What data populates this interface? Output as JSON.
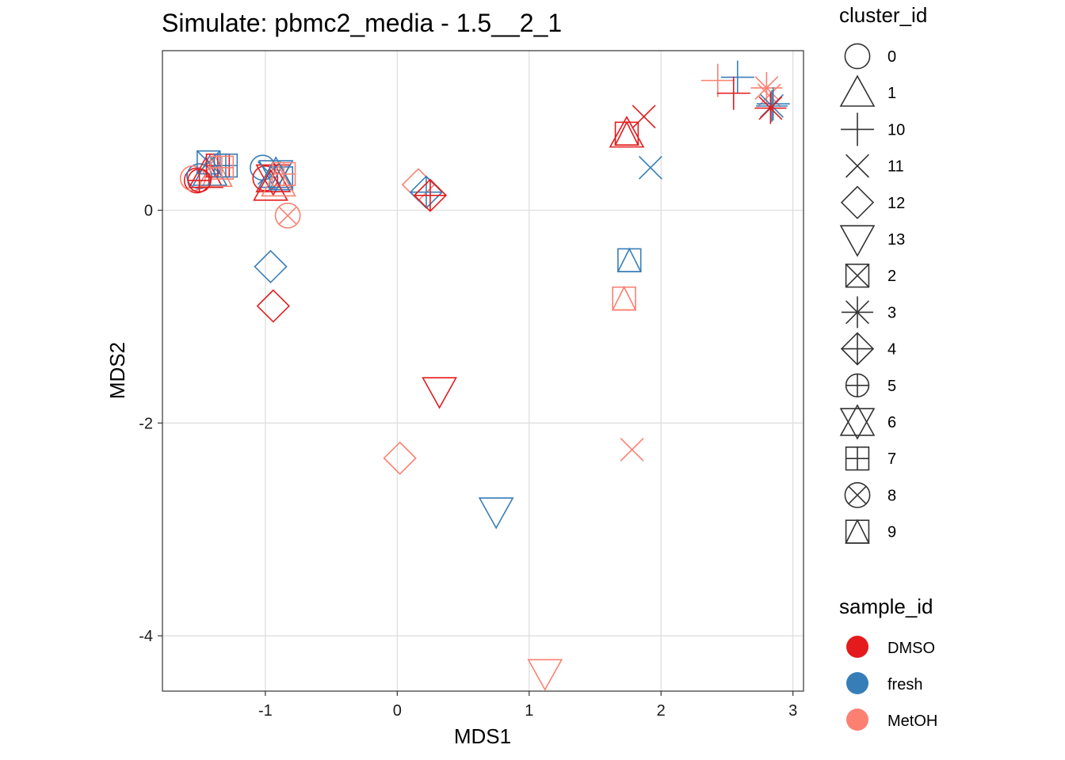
{
  "chart_data": {
    "type": "scatter",
    "title": "Simulate: pbmc2_media - 1.5__2_1",
    "xlabel": "MDS1",
    "ylabel": "MDS2",
    "xlim": [
      -1.78,
      3.08
    ],
    "ylim": [
      -4.52,
      1.5
    ],
    "xticks": [
      -1,
      0,
      1,
      2,
      3
    ],
    "xtick_labels": [
      "-1",
      "0",
      "1",
      "2",
      "3"
    ],
    "yticks": [
      0,
      -2,
      -4
    ],
    "ytick_labels": [
      "0",
      "-2",
      "-4"
    ],
    "grid": true,
    "legends": {
      "shape": {
        "title": "cluster_id",
        "entries": [
          {
            "label": "0",
            "shape": "circle"
          },
          {
            "label": "1",
            "shape": "triangle"
          },
          {
            "label": "10",
            "shape": "plus"
          },
          {
            "label": "11",
            "shape": "cross"
          },
          {
            "label": "12",
            "shape": "diamond"
          },
          {
            "label": "13",
            "shape": "triangle-down"
          },
          {
            "label": "2",
            "shape": "square-cross"
          },
          {
            "label": "3",
            "shape": "asterisk"
          },
          {
            "label": "4",
            "shape": "diamond-plus"
          },
          {
            "label": "5",
            "shape": "circle-plus"
          },
          {
            "label": "6",
            "shape": "star-of-david"
          },
          {
            "label": "7",
            "shape": "square-plus"
          },
          {
            "label": "8",
            "shape": "circle-cross"
          },
          {
            "label": "9",
            "shape": "square-triangle"
          }
        ]
      },
      "color": {
        "title": "sample_id",
        "entries": [
          {
            "label": "DMSO",
            "color": "#E41A1C"
          },
          {
            "label": "fresh",
            "color": "#377EB8"
          },
          {
            "label": "MetOH",
            "color": "#FB8072"
          }
        ]
      }
    },
    "points": [
      {
        "x": -1.52,
        "y": 0.28,
        "cluster": "0",
        "sample": "DMSO"
      },
      {
        "x": -1.5,
        "y": 0.32,
        "cluster": "0",
        "sample": "fresh"
      },
      {
        "x": -1.55,
        "y": 0.3,
        "cluster": "0",
        "sample": "MetOH"
      },
      {
        "x": -1.45,
        "y": 0.34,
        "cluster": "1",
        "sample": "DMSO"
      },
      {
        "x": -1.42,
        "y": 0.36,
        "cluster": "1",
        "sample": "fresh"
      },
      {
        "x": -1.38,
        "y": 0.35,
        "cluster": "1",
        "sample": "MetOH"
      },
      {
        "x": -1.43,
        "y": 0.45,
        "cluster": "2",
        "sample": "fresh"
      },
      {
        "x": -1.36,
        "y": 0.42,
        "cluster": "7",
        "sample": "DMSO"
      },
      {
        "x": -1.3,
        "y": 0.42,
        "cluster": "7",
        "sample": "fresh"
      },
      {
        "x": -1.33,
        "y": 0.4,
        "cluster": "7",
        "sample": "MetOH"
      },
      {
        "x": -1.5,
        "y": 0.28,
        "cluster": "5",
        "sample": "DMSO"
      },
      {
        "x": -1.02,
        "y": 0.4,
        "cluster": "0",
        "sample": "fresh"
      },
      {
        "x": -1.0,
        "y": 0.3,
        "cluster": "0",
        "sample": "DMSO"
      },
      {
        "x": -0.97,
        "y": 0.35,
        "cluster": "11",
        "sample": "fresh"
      },
      {
        "x": -0.94,
        "y": 0.3,
        "cluster": "6",
        "sample": "DMSO"
      },
      {
        "x": -0.92,
        "y": 0.34,
        "cluster": "6",
        "sample": "fresh"
      },
      {
        "x": -0.88,
        "y": 0.3,
        "cluster": "9",
        "sample": "fresh"
      },
      {
        "x": -0.86,
        "y": 0.34,
        "cluster": "7",
        "sample": "MetOH"
      },
      {
        "x": -0.96,
        "y": 0.22,
        "cluster": "1",
        "sample": "DMSO"
      },
      {
        "x": -0.9,
        "y": 0.26,
        "cluster": "1",
        "sample": "MetOH"
      },
      {
        "x": -0.83,
        "y": -0.05,
        "cluster": "8",
        "sample": "MetOH"
      },
      {
        "x": -0.96,
        "y": -0.53,
        "cluster": "12",
        "sample": "fresh"
      },
      {
        "x": -0.94,
        "y": -0.9,
        "cluster": "12",
        "sample": "DMSO"
      },
      {
        "x": 0.16,
        "y": 0.24,
        "cluster": "12",
        "sample": "MetOH"
      },
      {
        "x": 0.22,
        "y": 0.17,
        "cluster": "4",
        "sample": "fresh"
      },
      {
        "x": 0.25,
        "y": 0.14,
        "cluster": "4",
        "sample": "DMSO"
      },
      {
        "x": 0.32,
        "y": -1.7,
        "cluster": "13",
        "sample": "DMSO"
      },
      {
        "x": 0.02,
        "y": -2.33,
        "cluster": "12",
        "sample": "MetOH"
      },
      {
        "x": 0.75,
        "y": -2.83,
        "cluster": "13",
        "sample": "fresh"
      },
      {
        "x": 1.12,
        "y": -4.35,
        "cluster": "13",
        "sample": "MetOH"
      },
      {
        "x": 1.74,
        "y": 0.72,
        "cluster": "1",
        "sample": "DMSO"
      },
      {
        "x": 1.74,
        "y": 0.72,
        "cluster": "9",
        "sample": "DMSO"
      },
      {
        "x": 1.87,
        "y": 0.88,
        "cluster": "11",
        "sample": "DMSO"
      },
      {
        "x": 1.92,
        "y": 0.4,
        "cluster": "11",
        "sample": "fresh"
      },
      {
        "x": 1.76,
        "y": -0.47,
        "cluster": "9",
        "sample": "fresh"
      },
      {
        "x": 1.72,
        "y": -0.83,
        "cluster": "9",
        "sample": "MetOH"
      },
      {
        "x": 1.78,
        "y": -2.25,
        "cluster": "11",
        "sample": "MetOH"
      },
      {
        "x": 2.43,
        "y": 1.22,
        "cluster": "10",
        "sample": "MetOH"
      },
      {
        "x": 2.58,
        "y": 1.25,
        "cluster": "10",
        "sample": "fresh"
      },
      {
        "x": 2.55,
        "y": 1.1,
        "cluster": "10",
        "sample": "DMSO"
      },
      {
        "x": 2.8,
        "y": 1.15,
        "cluster": "3",
        "sample": "MetOH"
      },
      {
        "x": 2.82,
        "y": 1.08,
        "cluster": "11",
        "sample": "MetOH"
      },
      {
        "x": 2.85,
        "y": 1.0,
        "cluster": "10",
        "sample": "fresh"
      },
      {
        "x": 2.84,
        "y": 0.98,
        "cluster": "3",
        "sample": "fresh"
      },
      {
        "x": 2.83,
        "y": 0.96,
        "cluster": "3",
        "sample": "DMSO"
      }
    ]
  }
}
